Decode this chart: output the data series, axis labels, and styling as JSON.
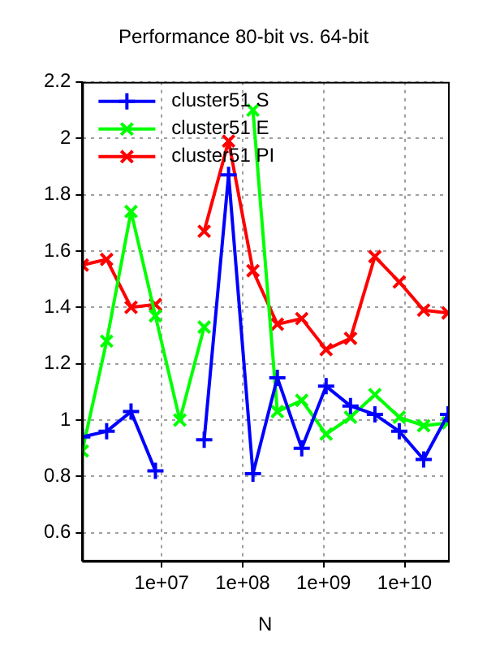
{
  "chart_data": {
    "type": "line",
    "title": "Performance 80-bit vs. 64-bit",
    "xlabel": "N",
    "log": "x",
    "x": [
      1048576,
      2097152,
      4194304,
      8388608,
      16777216,
      33554432,
      67108864,
      134217728,
      268435456,
      536870912,
      1073741824,
      2147483648,
      4294967296,
      8589934592,
      17179869184,
      34359738368
    ],
    "series": [
      {
        "name": "cluster51 S",
        "color": "#0000ff",
        "marker": "plus",
        "values": [
          0.94,
          0.96,
          1.03,
          0.82,
          null,
          0.93,
          1.87,
          0.81,
          1.15,
          0.9,
          1.12,
          1.05,
          1.02,
          0.96,
          0.86,
          1.02
        ]
      },
      {
        "name": "cluster51 E",
        "color": "#00ff00",
        "marker": "cross",
        "values": [
          0.89,
          1.28,
          1.74,
          1.37,
          1.0,
          1.33,
          null,
          2.1,
          1.03,
          1.07,
          0.95,
          1.01,
          1.09,
          1.01,
          0.98,
          0.99
        ]
      },
      {
        "name": "cluster51 PI",
        "color": "#ff0000",
        "marker": "cross",
        "values": [
          1.55,
          1.57,
          1.4,
          1.41,
          null,
          1.67,
          1.99,
          1.53,
          1.34,
          1.36,
          1.25,
          1.29,
          1.58,
          1.49,
          1.39,
          1.38
        ]
      }
    ],
    "xlim": [
      1048576,
      34359738368
    ],
    "xticks": [
      {
        "value": 10000000,
        "label": "1e+07"
      },
      {
        "value": 100000000,
        "label": "1e+08"
      },
      {
        "value": 1000000000,
        "label": "1e+09"
      },
      {
        "value": 10000000000,
        "label": "1e+10"
      }
    ],
    "ylim": [
      0.5,
      2.2
    ],
    "yticks": [
      0.6,
      0.8,
      1,
      1.2,
      1.4,
      1.6,
      1.8,
      2,
      2.2
    ],
    "grid": true,
    "legend": "top left",
    "line_style": "solid"
  }
}
